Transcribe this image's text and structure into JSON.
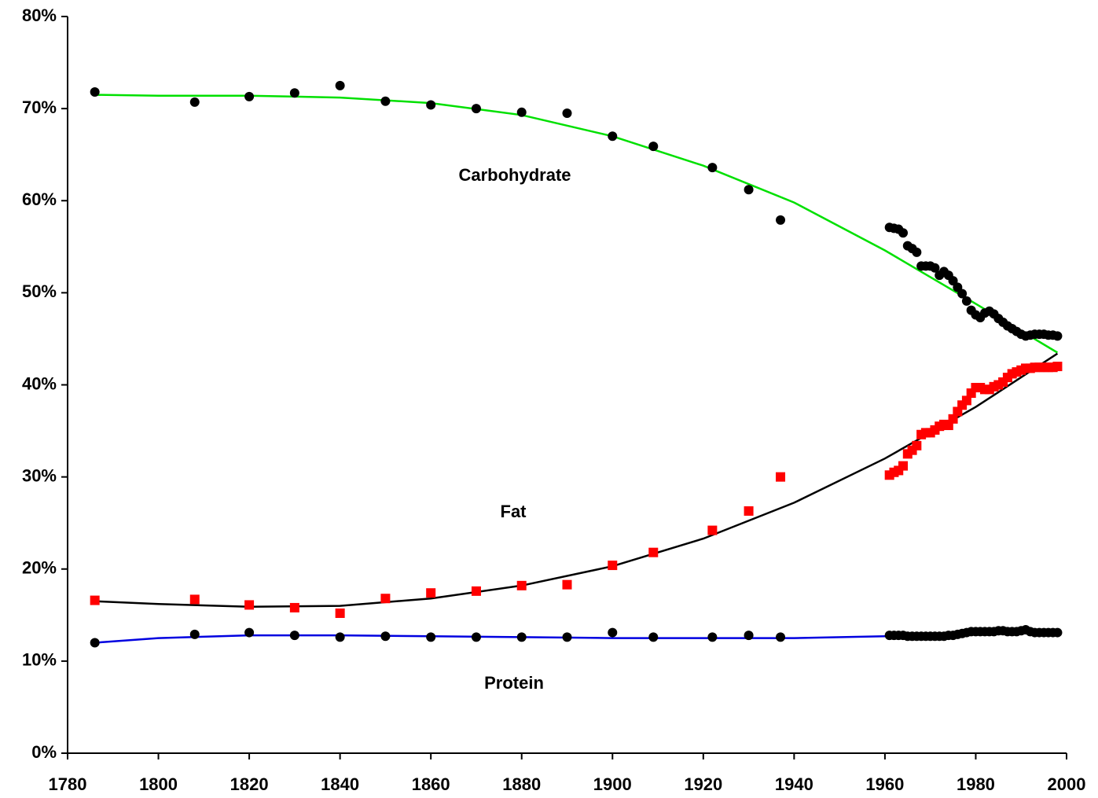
{
  "chart_data": {
    "type": "scatter",
    "x": [
      1786,
      1808,
      1820,
      1830,
      1840,
      1850,
      1860,
      1870,
      1880,
      1890,
      1900,
      1909,
      1922,
      1930,
      1937,
      1961,
      1962,
      1963,
      1964,
      1965,
      1966,
      1967,
      1968,
      1969,
      1970,
      1971,
      1972,
      1973,
      1974,
      1975,
      1976,
      1977,
      1978,
      1979,
      1980,
      1981,
      1982,
      1983,
      1984,
      1985,
      1986,
      1987,
      1988,
      1989,
      1990,
      1991,
      1992,
      1993,
      1994,
      1995,
      1996,
      1997,
      1998
    ],
    "trend_x": [
      1786,
      1800,
      1820,
      1840,
      1860,
      1880,
      1900,
      1920,
      1940,
      1960,
      1980,
      1998
    ],
    "series": [
      {
        "name": "Carbohydrate",
        "color": "#000000",
        "marker": "circle",
        "values": [
          71.8,
          70.7,
          71.3,
          71.7,
          72.5,
          70.8,
          70.4,
          70.0,
          69.6,
          69.5,
          67.0,
          65.9,
          63.6,
          61.2,
          57.9,
          57.1,
          57.0,
          56.9,
          56.5,
          55.1,
          54.8,
          54.4,
          52.9,
          52.9,
          52.9,
          52.7,
          51.9,
          52.3,
          51.9,
          51.3,
          50.6,
          49.9,
          49.1,
          48.1,
          47.6,
          47.3,
          47.8,
          48.0,
          47.7,
          47.2,
          46.8,
          46.4,
          46.1,
          45.8,
          45.5,
          45.3,
          45.4,
          45.5,
          45.5,
          45.5,
          45.4,
          45.4,
          45.3
        ],
        "trend": {
          "color": "#00e000",
          "values": [
            71.5,
            71.4,
            71.4,
            71.2,
            70.6,
            69.3,
            67.0,
            63.8,
            59.8,
            54.6,
            48.8,
            43.5
          ]
        }
      },
      {
        "name": "Fat",
        "color": "#ff0000",
        "marker": "square",
        "values": [
          16.6,
          16.7,
          16.1,
          15.8,
          15.2,
          16.8,
          17.4,
          17.6,
          18.2,
          18.3,
          20.4,
          21.8,
          24.2,
          26.3,
          30.0,
          30.2,
          30.5,
          30.7,
          31.2,
          32.5,
          32.9,
          33.4,
          34.6,
          34.8,
          34.8,
          35.1,
          35.5,
          35.7,
          35.6,
          36.3,
          37.1,
          37.8,
          38.3,
          39.1,
          39.7,
          39.7,
          39.5,
          39.5,
          39.8,
          40.0,
          40.3,
          40.8,
          41.2,
          41.4,
          41.6,
          41.8,
          41.8,
          41.9,
          41.9,
          41.9,
          41.9,
          41.9,
          42.0
        ],
        "trend": {
          "color": "#000000",
          "values": [
            16.5,
            16.2,
            15.9,
            16.0,
            16.8,
            18.2,
            20.3,
            23.3,
            27.2,
            32.0,
            37.6,
            43.4
          ]
        }
      },
      {
        "name": "Protein",
        "color": "#000000",
        "marker": "circle",
        "values": [
          12.0,
          12.9,
          13.1,
          12.8,
          12.6,
          12.7,
          12.6,
          12.6,
          12.6,
          12.6,
          13.1,
          12.6,
          12.6,
          12.8,
          12.6,
          12.8,
          12.8,
          12.8,
          12.8,
          12.7,
          12.7,
          12.7,
          12.7,
          12.7,
          12.7,
          12.7,
          12.7,
          12.7,
          12.8,
          12.8,
          12.9,
          13.0,
          13.1,
          13.2,
          13.2,
          13.2,
          13.2,
          13.2,
          13.2,
          13.3,
          13.3,
          13.2,
          13.2,
          13.2,
          13.3,
          13.4,
          13.2,
          13.1,
          13.1,
          13.1,
          13.1,
          13.1,
          13.1
        ],
        "trend": {
          "color": "#0000e0",
          "values": [
            12.0,
            12.5,
            12.8,
            12.8,
            12.7,
            12.6,
            12.5,
            12.5,
            12.5,
            12.7,
            12.9,
            13.1
          ]
        }
      }
    ],
    "xlim": [
      1780,
      2000
    ],
    "xticks": [
      1780,
      1800,
      1820,
      1840,
      1860,
      1880,
      1900,
      1920,
      1940,
      1960,
      1980,
      2000
    ],
    "ylim": [
      0,
      80
    ],
    "yticks": [
      {
        "value": 0,
        "label": "0%"
      },
      {
        "value": 10,
        "label": "10%"
      },
      {
        "value": 20,
        "label": "20%"
      },
      {
        "value": 30,
        "label": "30%"
      },
      {
        "value": 40,
        "label": "40%"
      },
      {
        "value": 50,
        "label": "50%"
      },
      {
        "value": 60,
        "label": "60%"
      },
      {
        "value": 70,
        "label": "70%"
      },
      {
        "value": 80,
        "label": "80%"
      }
    ],
    "grid": false
  }
}
